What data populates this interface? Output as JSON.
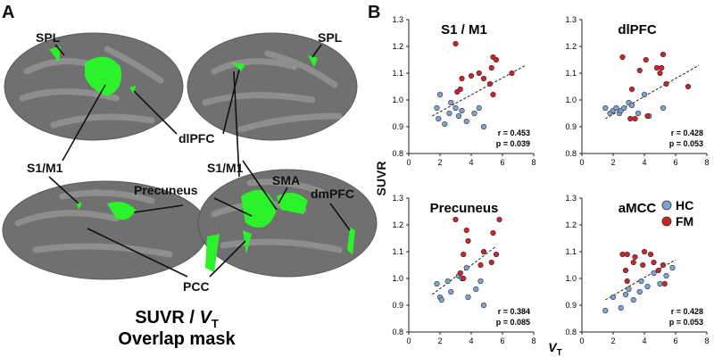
{
  "figure_a": {
    "panel_label": "A",
    "labels": {
      "spl_left": "SPL",
      "spl_right": "SPL",
      "dlpfc": "dlPFC",
      "s1m1_left": "S1/M1",
      "s1m1_right": "S1/M1",
      "precuneus": "Precuneus",
      "sma": "SMA",
      "dmpfc": "dmPFC",
      "pcc": "PCC"
    },
    "caption": {
      "main": "SUVR / ",
      "v": "V",
      "sub": "T",
      "line2": "Overlap mask"
    }
  },
  "figure_b": {
    "panel_label": "B",
    "ylabel": "SUVR",
    "xlabel": "V",
    "xlabel_sub": "T"
  },
  "chart_data": [
    {
      "type": "scatter",
      "title": "S1 / M1",
      "xlim": [
        0,
        8
      ],
      "xticks": [
        0,
        2,
        4,
        6,
        8
      ],
      "ylim": [
        0.8,
        1.3
      ],
      "yticks": [
        0.8,
        0.9,
        {
          "value": 1,
          "label": "1.0"
        },
        1.1,
        1.2,
        1.3
      ],
      "annotations": [
        "r = 0.453",
        "p = 0.039"
      ],
      "trend": {
        "x": [
          1.5,
          7.5
        ],
        "y": [
          0.94,
          1.13
        ]
      },
      "series": [
        {
          "name": "HC",
          "color": "#7ba4d3",
          "x": [
            1.8,
            2.0,
            1.9,
            2.3,
            2.7,
            2.6,
            3.0,
            3.2,
            3.4,
            3.7,
            4.2,
            4.5,
            4.8
          ],
          "values": [
            0.97,
            1.02,
            0.93,
            0.91,
            0.99,
            0.95,
            0.97,
            0.94,
            0.96,
            0.92,
            0.95,
            0.97,
            0.9
          ]
        },
        {
          "name": "FM",
          "color": "#cc2229",
          "x": [
            3.0,
            3.1,
            3.3,
            3.4,
            4.0,
            4.5,
            4.8,
            5.2,
            5.3,
            5.4,
            5.6,
            5.4,
            6.6
          ],
          "values": [
            1.21,
            1.03,
            1.04,
            1.08,
            1.09,
            1.1,
            1.08,
            1.06,
            1.12,
            1.16,
            1.15,
            1.02,
            1.1
          ]
        }
      ]
    },
    {
      "type": "scatter",
      "title": "dlPFC",
      "xlim": [
        0,
        8
      ],
      "xticks": [
        0,
        2,
        4,
        6,
        8
      ],
      "ylim": [
        0.8,
        1.3
      ],
      "yticks": [
        0.8,
        0.9,
        {
          "value": 1,
          "label": "1.0"
        },
        1.1,
        1.2,
        1.3
      ],
      "annotations": [
        "r = 0.428",
        "p = 0.053"
      ],
      "trend": {
        "x": [
          1.5,
          7.5
        ],
        "y": [
          0.93,
          1.13
        ]
      },
      "series": [
        {
          "name": "HC",
          "color": "#7ba4d3",
          "x": [
            1.5,
            1.8,
            2.0,
            2.2,
            2.4,
            2.5,
            2.7,
            3.0,
            3.2,
            3.6,
            4.0,
            4.3,
            5.2
          ],
          "values": [
            0.97,
            0.95,
            0.96,
            0.97,
            0.95,
            0.96,
            0.97,
            0.99,
            0.98,
            0.95,
            1.02,
            0.94,
            0.97
          ]
        },
        {
          "name": "FM",
          "color": "#cc2229",
          "x": [
            2.6,
            3.1,
            3.2,
            3.4,
            3.7,
            4.1,
            4.2,
            4.8,
            5.0,
            5.1,
            5.2,
            5.4,
            6.8
          ],
          "values": [
            1.16,
            0.93,
            1.04,
            0.93,
            1.11,
            1.15,
            0.94,
            1.12,
            1.1,
            1.12,
            1.17,
            1.06,
            1.05
          ]
        }
      ]
    },
    {
      "type": "scatter",
      "title": "Precuneus",
      "xlim": [
        0,
        8
      ],
      "xticks": [
        0,
        2,
        4,
        6,
        8
      ],
      "ylim": [
        0.8,
        1.3
      ],
      "yticks": [
        0.8,
        0.9,
        {
          "value": 1,
          "label": "1.0"
        },
        1.1,
        1.2,
        1.3
      ],
      "annotations": [
        "r = 0.384",
        "p = 0.085"
      ],
      "trend": {
        "x": [
          1.5,
          5.6
        ],
        "y": [
          0.94,
          1.12
        ]
      },
      "series": [
        {
          "name": "HC",
          "color": "#7ba4d3",
          "x": [
            1.8,
            2.0,
            2.1,
            2.5,
            2.7,
            3.2,
            3.4,
            3.7,
            4.3,
            4.6,
            4.8,
            3.8
          ],
          "values": [
            0.98,
            0.93,
            0.92,
            0.99,
            0.95,
            1.01,
            1.0,
            1.04,
            0.96,
            0.99,
            0.9,
            0.93
          ]
        },
        {
          "name": "FM",
          "color": "#cc2229",
          "x": [
            3.0,
            3.3,
            3.5,
            3.7,
            3.8,
            4.6,
            4.8,
            5.3,
            5.4,
            5.6,
            5.8,
            3.5
          ],
          "values": [
            1.22,
            1.02,
            1.09,
            1.18,
            1.14,
            1.05,
            1.1,
            1.06,
            1.17,
            1.09,
            1.22,
            1.0
          ]
        }
      ]
    },
    {
      "type": "scatter",
      "title": "aMCC",
      "xlim": [
        0,
        8
      ],
      "xticks": [
        0,
        2,
        4,
        6,
        8
      ],
      "ylim": [
        0.8,
        1.3
      ],
      "yticks": [
        0.8,
        0.9,
        {
          "value": 1,
          "label": "1.0"
        },
        1.1,
        1.2,
        1.3
      ],
      "annotations": [
        "r = 0.428",
        "p = 0.053"
      ],
      "trend": {
        "x": [
          1.5,
          6.0
        ],
        "y": [
          0.92,
          1.07
        ]
      },
      "legend": "right",
      "series": [
        {
          "name": "HC",
          "color": "#7ba4d3",
          "x": [
            1.5,
            2.0,
            2.5,
            2.8,
            3.0,
            3.3,
            3.7,
            3.8,
            4.2,
            4.6,
            5.0,
            5.4,
            5.8
          ],
          "values": [
            0.88,
            0.93,
            0.89,
            0.94,
            0.96,
            0.92,
            0.95,
            0.99,
            0.97,
            1.02,
            0.98,
            1.01,
            1.04
          ]
        },
        {
          "name": "FM",
          "color": "#cc2229",
          "x": [
            2.6,
            2.9,
            2.8,
            2.9,
            3.3,
            3.4,
            3.9,
            4.0,
            4.4,
            4.6,
            4.9,
            5.2,
            5.3
          ],
          "values": [
            1.09,
            1.09,
            1.03,
            0.99,
            1.06,
            1.08,
            1.05,
            1.1,
            1.09,
            1.06,
            1.03,
            1.05,
            0.98
          ]
        }
      ]
    }
  ]
}
